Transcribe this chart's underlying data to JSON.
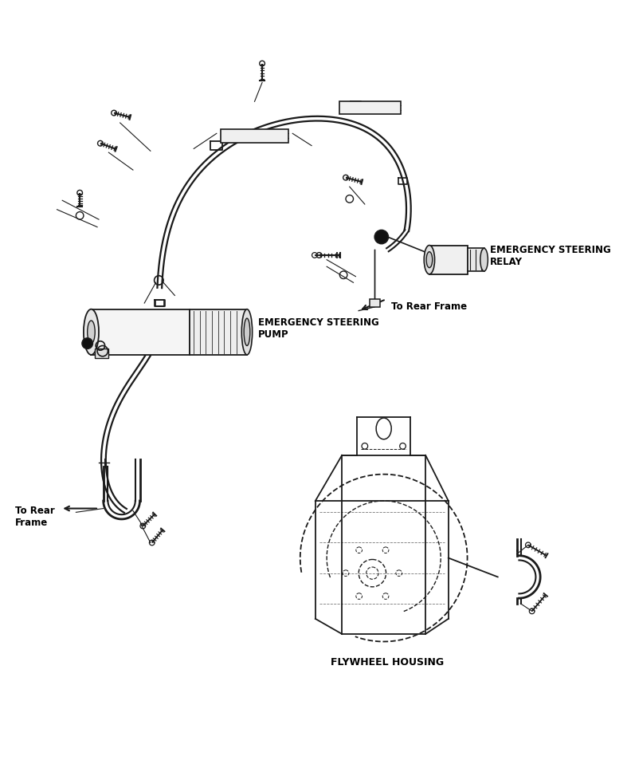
{
  "bg_color": "#ffffff",
  "lc": "#1a1a1a",
  "tc": "#000000",
  "fig_w": 7.92,
  "fig_h": 9.68,
  "dpi": 100,
  "labels": {
    "relay": "EMERGENCY STEERING\nRELAY",
    "pump": "EMERGENCY STEERING\nPUMP",
    "to_rear_1": "To Rear Frame",
    "to_rear_2": "To Rear\nFrame",
    "flywheel": "FLYWHEEL HOUSING"
  }
}
